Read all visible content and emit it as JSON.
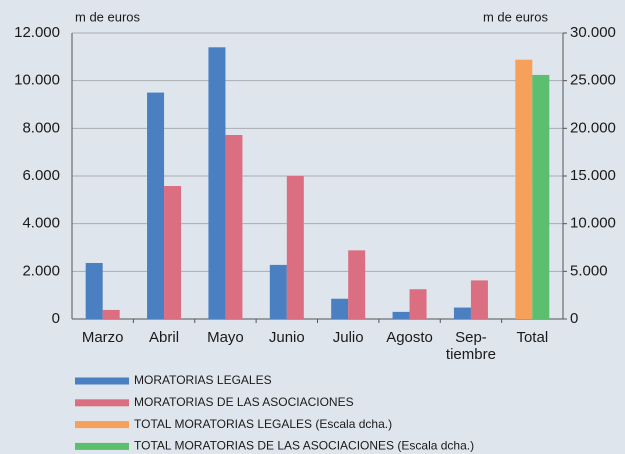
{
  "chart_data": {
    "type": "bar",
    "y_label": "m de euros",
    "y2_label": "m de euros",
    "categories": [
      "Marzo",
      "Abril",
      "Mayo",
      "Junio",
      "Julio",
      "Agosto",
      "Sep-\ntiembre",
      "Total"
    ],
    "series": [
      {
        "name": "MORATORIAS LEGALES",
        "color": "#4a7fc1",
        "values": [
          2350,
          9500,
          11400,
          2270,
          850,
          300,
          480,
          null
        ]
      },
      {
        "name": "MORATORIAS DE LAS ASOCIACIONES",
        "color": "#dc6e82",
        "values": [
          380,
          5580,
          7720,
          6000,
          2880,
          1250,
          1620,
          null
        ]
      },
      {
        "name": "TOTAL MORATORIAS LEGALES (Escala dcha.)",
        "color": "#f7a05c",
        "axis": "y2",
        "values": [
          null,
          null,
          null,
          null,
          null,
          null,
          null,
          27200
        ]
      },
      {
        "name": "TOTAL MORATORIAS DE LAS ASOCIACIONES (Escala dcha.)",
        "color": "#5cbf70",
        "axis": "y2",
        "values": [
          null,
          null,
          null,
          null,
          null,
          null,
          null,
          25600
        ]
      }
    ],
    "ylim": [
      0,
      12000
    ],
    "yticks": [
      0,
      {
        "value": 2000,
        "label": "2.000"
      },
      {
        "value": 4000,
        "label": "4.000"
      },
      {
        "value": 6000,
        "label": "6.000"
      },
      {
        "value": 8000,
        "label": "8.000"
      },
      {
        "value": 10000,
        "label": "10.000"
      },
      {
        "value": 12000,
        "label": "12.000"
      }
    ],
    "y2lim": [
      0,
      30000
    ],
    "y2ticks": [
      0,
      {
        "value": 5000,
        "label": "5.000"
      },
      {
        "value": 10000,
        "label": "10.000"
      },
      {
        "value": 15000,
        "label": "15.000"
      },
      {
        "value": 20000,
        "label": "20.000"
      },
      {
        "value": 25000,
        "label": "25.000"
      },
      {
        "value": 30000,
        "label": "30.000"
      }
    ],
    "grid": true
  }
}
